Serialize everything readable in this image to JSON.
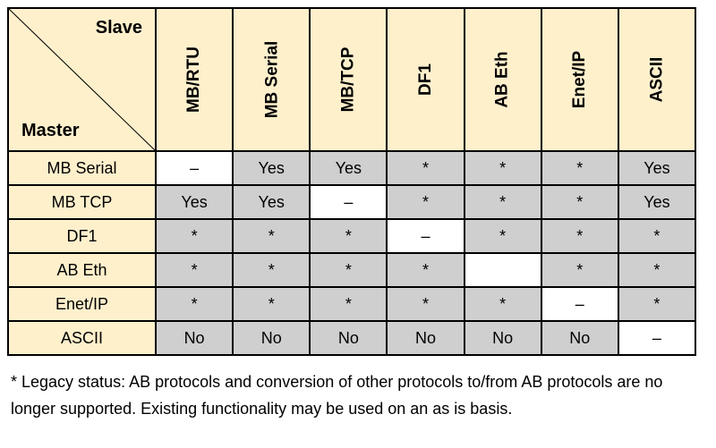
{
  "header": {
    "slave_label": "Slave",
    "master_label": "Master",
    "columns": [
      "MB/RTU",
      "MB Serial",
      "MB/TCP",
      "DF1",
      "AB Eth",
      "Enet/IP",
      "ASCII"
    ]
  },
  "rows": [
    {
      "label": "MB Serial",
      "cells": [
        "–",
        "Yes",
        "Yes",
        "*",
        "*",
        "*",
        "Yes"
      ]
    },
    {
      "label": "MB TCP",
      "cells": [
        "Yes",
        "Yes",
        "–",
        "*",
        "*",
        "*",
        "Yes"
      ]
    },
    {
      "label": "DF1",
      "cells": [
        "*",
        "*",
        "*",
        "–",
        "*",
        "*",
        "*"
      ]
    },
    {
      "label": "AB Eth",
      "cells": [
        "*",
        "*",
        "*",
        "*",
        "",
        "*",
        "*"
      ]
    },
    {
      "label": "Enet/IP",
      "cells": [
        "*",
        "*",
        "*",
        "*",
        "*",
        "–",
        "*"
      ]
    },
    {
      "label": "ASCII",
      "cells": [
        "No",
        "No",
        "No",
        "No",
        "No",
        "No",
        "–"
      ]
    }
  ],
  "footnote": "* Legacy status:  AB protocols and conversion of other protocols to/from AB protocols are no longer supported. Existing functionality may be used on an as is basis.",
  "colors": {
    "header_fill": "#fff0cc",
    "supported_fill": "#cfcfcf",
    "self_fill": "#ffffff",
    "border": "#000000"
  }
}
